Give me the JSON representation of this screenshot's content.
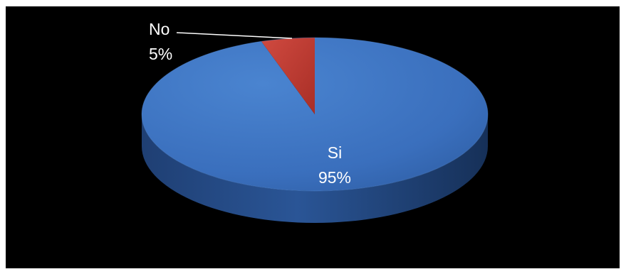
{
  "chart_data": {
    "type": "pie",
    "title": "",
    "three_d": true,
    "slices": [
      {
        "label": "Si",
        "percent_label": "95%",
        "value": 95,
        "color": "#3a6fbd"
      },
      {
        "label": "No",
        "percent_label": "5%",
        "value": 5,
        "color": "#c0382f"
      }
    ],
    "background": "#000000",
    "label_color": "#ffffff"
  }
}
